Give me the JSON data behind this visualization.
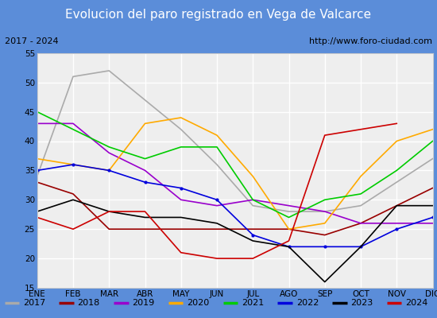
{
  "title": "Evolucion del paro registrado en Vega de Valcarce",
  "subtitle_left": "2017 - 2024",
  "subtitle_right": "http://www.foro-ciudad.com",
  "months": [
    "ENE",
    "FEB",
    "MAR",
    "ABR",
    "MAY",
    "JUN",
    "JUL",
    "AGO",
    "SEP",
    "OCT",
    "NOV",
    "DIC"
  ],
  "ylim": [
    15,
    55
  ],
  "yticks": [
    15,
    20,
    25,
    30,
    35,
    40,
    45,
    50,
    55
  ],
  "series": {
    "2017": {
      "color": "#aaaaaa",
      "linewidth": 1.2,
      "data": [
        34,
        51,
        52,
        47,
        42,
        36,
        29,
        28,
        28,
        29,
        33,
        37
      ]
    },
    "2018": {
      "color": "#990000",
      "linewidth": 1.2,
      "data": [
        33,
        31,
        25,
        25,
        25,
        25,
        25,
        25,
        24,
        26,
        29,
        32
      ]
    },
    "2019": {
      "color": "#9900cc",
      "linewidth": 1.2,
      "data": [
        43,
        43,
        38,
        35,
        30,
        29,
        30,
        29,
        28,
        26,
        26,
        26
      ]
    },
    "2020": {
      "color": "#ffaa00",
      "linewidth": 1.2,
      "data": [
        37,
        36,
        35,
        43,
        44,
        41,
        34,
        25,
        26,
        34,
        40,
        42
      ]
    },
    "2021": {
      "color": "#00cc00",
      "linewidth": 1.2,
      "data": [
        45,
        42,
        39,
        37,
        39,
        39,
        30,
        27,
        30,
        31,
        35,
        40
      ]
    },
    "2022": {
      "color": "#0000dd",
      "linewidth": 1.2,
      "data": [
        35,
        36,
        35,
        33,
        32,
        30,
        24,
        22,
        22,
        22,
        25,
        27
      ]
    },
    "2023": {
      "color": "#000000",
      "linewidth": 1.2,
      "data": [
        28,
        30,
        28,
        27,
        27,
        26,
        23,
        22,
        16,
        22,
        29,
        29
      ]
    },
    "2024": {
      "color": "#cc0000",
      "linewidth": 1.2,
      "data": [
        27,
        25,
        28,
        28,
        21,
        20,
        20,
        23,
        41,
        42,
        43,
        null
      ]
    }
  },
  "title_bgcolor": "#5b8dd9",
  "title_color": "white",
  "title_fontsize": 11,
  "subtitle_fontsize": 8,
  "legend_fontsize": 8,
  "axes_bgcolor": "#eeeeee",
  "grid_color": "#ffffff",
  "border_color": "#5b8dd9"
}
